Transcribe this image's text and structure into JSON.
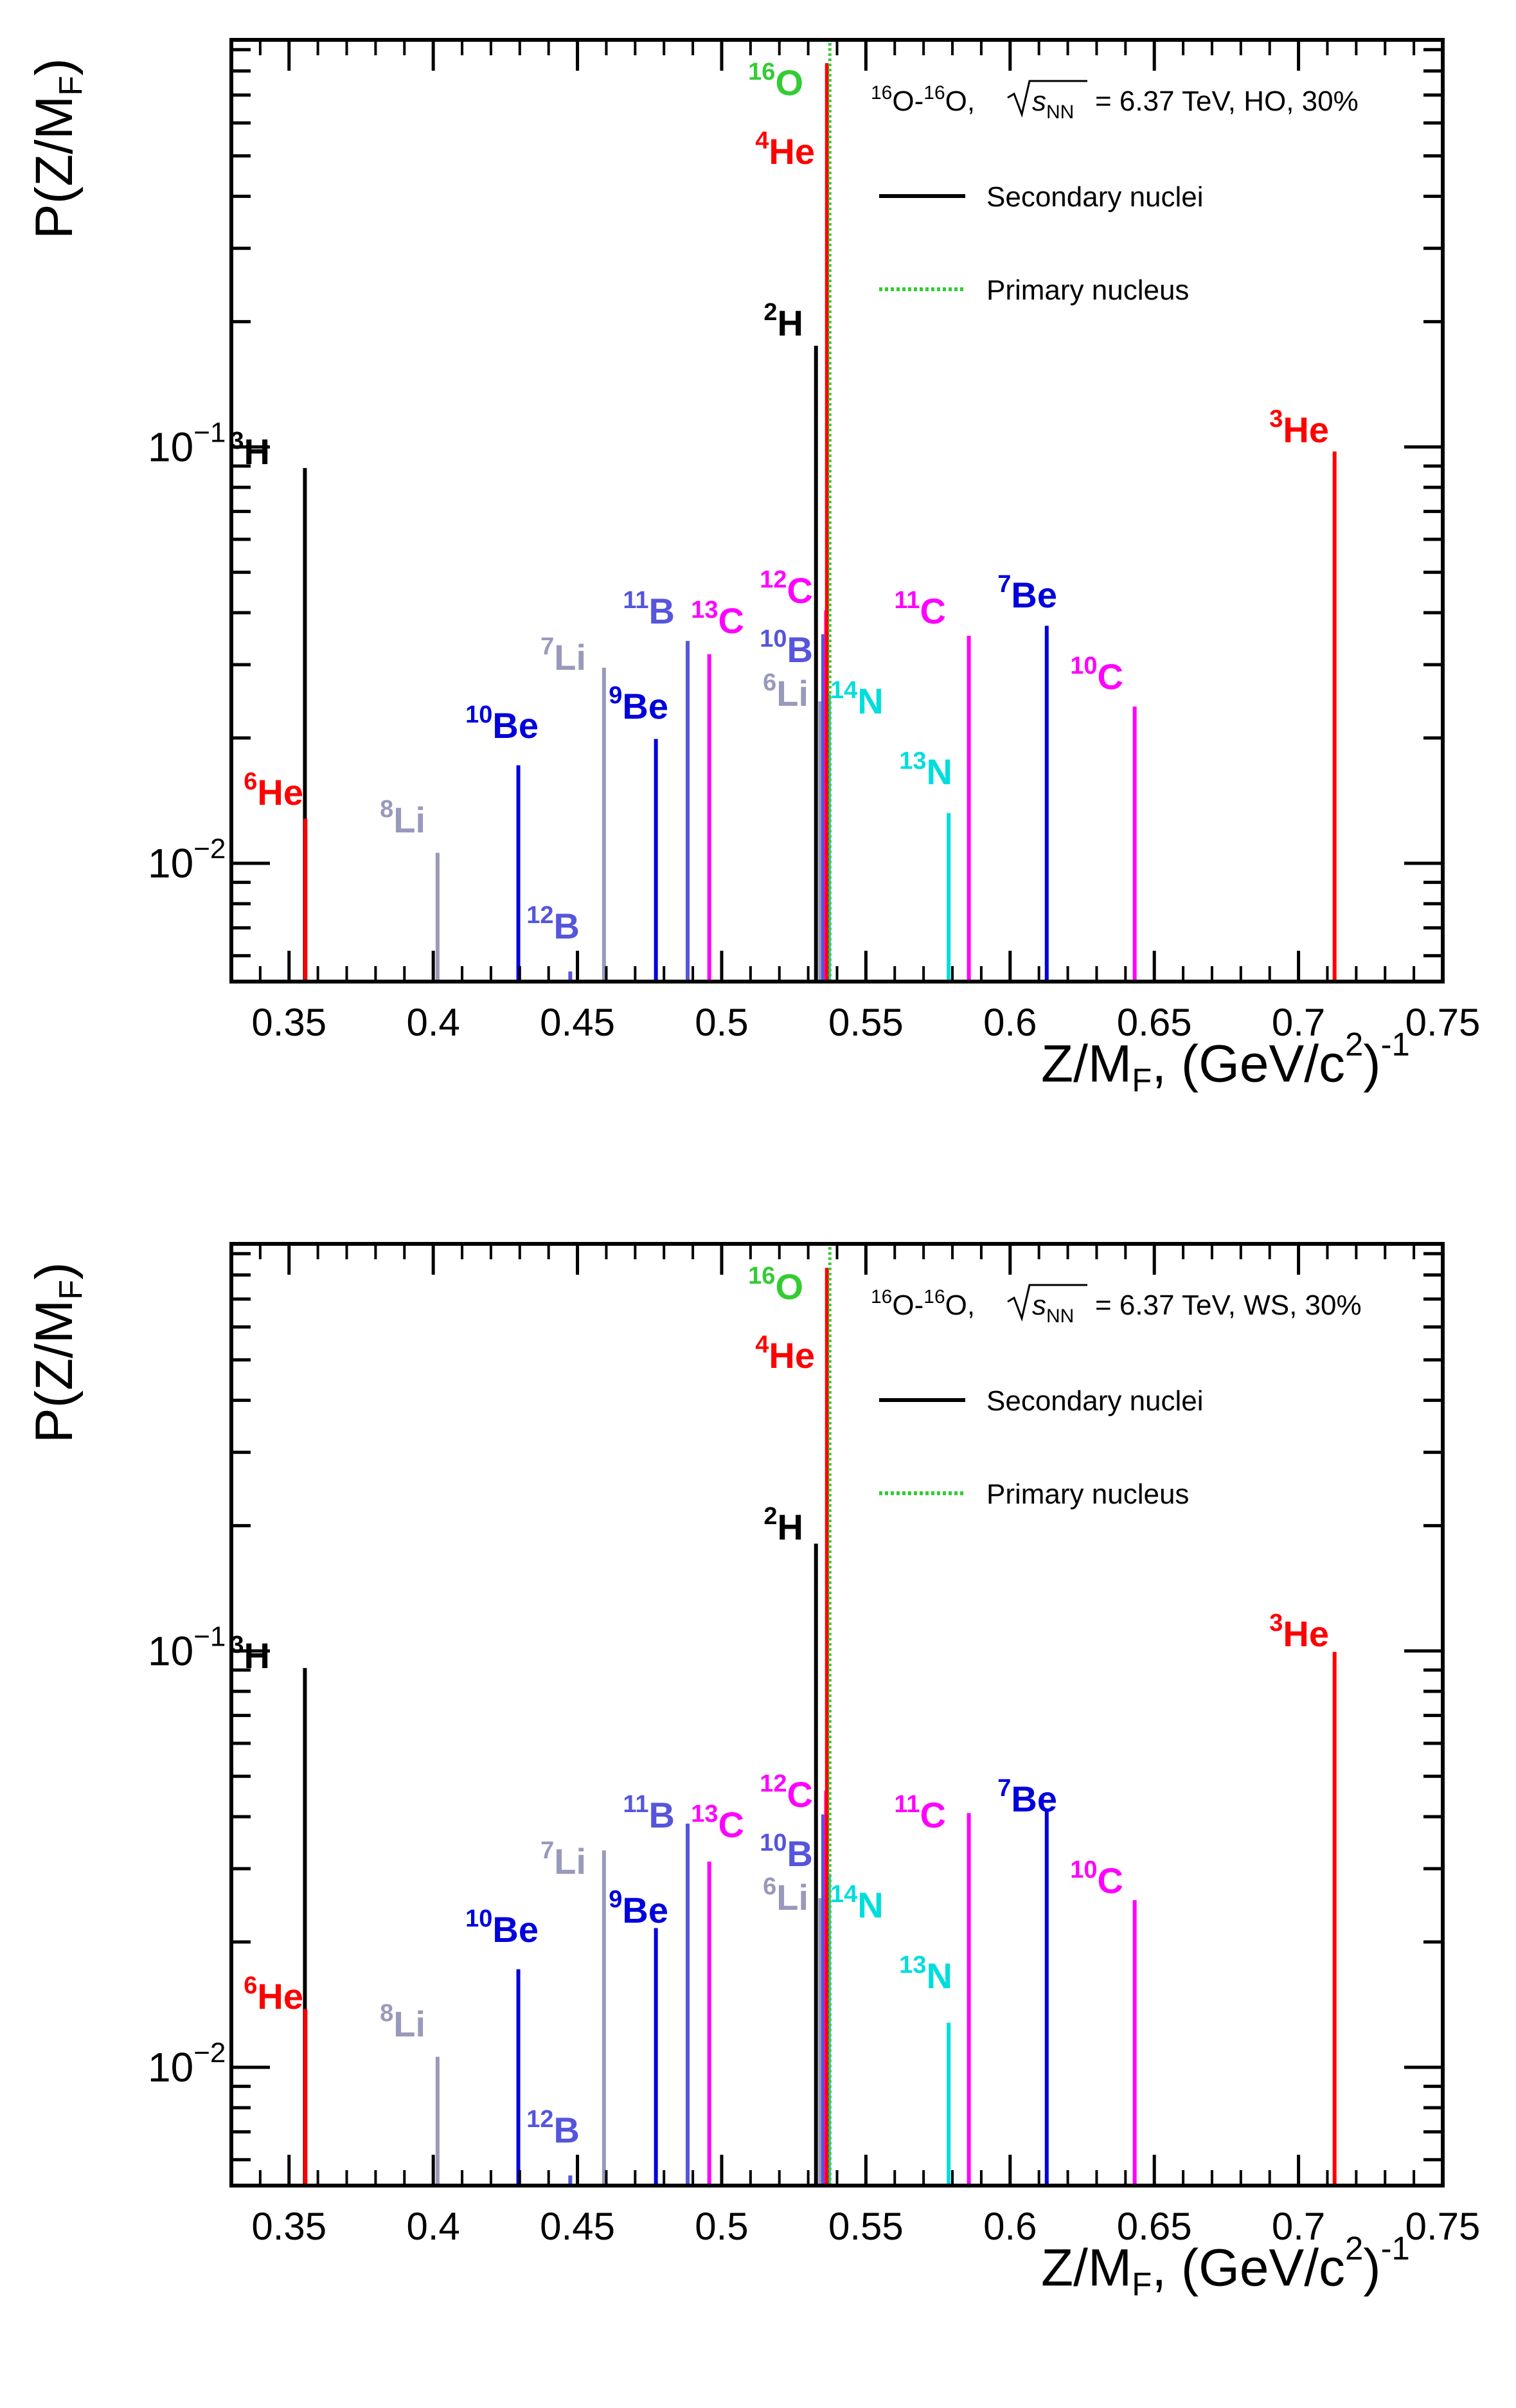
{
  "chart_data": [
    {
      "type": "bar",
      "subtype": "spike",
      "panel": "top",
      "legend_text": {
        "prefix_sup1": "16",
        "prefix_mid": "O-",
        "prefix_sup2": "16",
        "prefix_end": "O,",
        "sqrt_s": "s",
        "sqrt_sub": "NN",
        "suffix": "= 6.37 TeV, HO, 30%"
      },
      "legend": [
        {
          "label": "Secondary nuclei",
          "style": "solid",
          "color": "#000000"
        },
        {
          "label": "Primary nucleus",
          "style": "dotted",
          "color": "#33cc33"
        }
      ],
      "legend_placement": "top-right",
      "xlabel_main": "Z/M",
      "xlabel_sub": "F",
      "xlabel_unit": ", (GeV/c",
      "xlabel_sup": "2",
      "xlabel_close": ")",
      "xlabel_exp": "-1",
      "ylabel_main": "P(Z/M",
      "ylabel_sub": "F",
      "ylabel_close": ")",
      "xlim": [
        0.33,
        0.75
      ],
      "ylim": [
        0.0052,
        0.95
      ],
      "yscale": "log",
      "xticks": [
        "0.35",
        "0.4",
        "0.45",
        "0.5",
        "0.55",
        "0.6",
        "0.65",
        "0.7",
        "0.75"
      ],
      "yticks": [
        {
          "base": "10",
          "exp": "−2",
          "value": 0.01
        },
        {
          "base": "10",
          "exp": "−1",
          "value": 0.1
        }
      ],
      "series": [
        {
          "mass": "3",
          "element": "H",
          "x": 0.3555,
          "y": 0.089,
          "color": "#000000"
        },
        {
          "mass": "6",
          "element": "He",
          "x": 0.3557,
          "y": 0.0128,
          "color": "#ff0000"
        },
        {
          "mass": "8",
          "element": "Li",
          "x": 0.4015,
          "y": 0.0106,
          "color": "#9999bb"
        },
        {
          "mass": "10",
          "element": "Be",
          "x": 0.4295,
          "y": 0.0172,
          "color": "#0000dd"
        },
        {
          "mass": "12",
          "element": "B",
          "x": 0.4475,
          "y": 0.0055,
          "color": "#5555dd"
        },
        {
          "mass": "7",
          "element": "Li",
          "x": 0.4592,
          "y": 0.0295,
          "color": "#9999bb"
        },
        {
          "mass": "9",
          "element": "Be",
          "x": 0.4772,
          "y": 0.0199,
          "color": "#0000dd"
        },
        {
          "mass": "11",
          "element": "B",
          "x": 0.4882,
          "y": 0.0342,
          "color": "#5555dd"
        },
        {
          "mass": "13",
          "element": "C",
          "x": 0.4957,
          "y": 0.0318,
          "color": "#ff00ff"
        },
        {
          "mass": "2",
          "element": "H",
          "x": 0.5327,
          "y": 0.175,
          "color": "#000000"
        },
        {
          "mass": "6",
          "element": "Li",
          "x": 0.5342,
          "y": 0.0245,
          "color": "#9999bb"
        },
        {
          "mass": "10",
          "element": "B",
          "x": 0.5352,
          "y": 0.0355,
          "color": "#5555dd"
        },
        {
          "mass": "12",
          "element": "C",
          "x": 0.5362,
          "y": 0.0405,
          "color": "#ff00ff"
        },
        {
          "mass": "14",
          "element": "N",
          "x": 0.5372,
          "y": 0.0255,
          "color": "#00dddd"
        },
        {
          "mass": "4",
          "element": "He",
          "x": 0.5365,
          "y": 0.835,
          "color": "#ff0000"
        },
        {
          "mass": "16",
          "element": "O",
          "x": 0.5375,
          "y": 0.95,
          "color": "#33cc33",
          "dotted": true
        },
        {
          "mass": "13",
          "element": "N",
          "x": 0.5787,
          "y": 0.0132,
          "color": "#00dddd"
        },
        {
          "mass": "11",
          "element": "C",
          "x": 0.5857,
          "y": 0.0352,
          "color": "#ff00ff"
        },
        {
          "mass": "7",
          "element": "Be",
          "x": 0.6127,
          "y": 0.0372,
          "color": "#0000dd"
        },
        {
          "mass": "10",
          "element": "C",
          "x": 0.6432,
          "y": 0.0238,
          "color": "#ff00ff"
        },
        {
          "mass": "3",
          "element": "He",
          "x": 0.7125,
          "y": 0.0975,
          "color": "#ff0000"
        }
      ]
    },
    {
      "type": "bar",
      "subtype": "spike",
      "panel": "bottom",
      "legend_text": {
        "prefix_sup1": "16",
        "prefix_mid": "O-",
        "prefix_sup2": "16",
        "prefix_end": "O,",
        "sqrt_s": "s",
        "sqrt_sub": "NN",
        "suffix": "= 6.37 TeV, WS, 30%"
      },
      "legend": [
        {
          "label": "Secondary nuclei",
          "style": "solid",
          "color": "#000000"
        },
        {
          "label": "Primary nucleus",
          "style": "dotted",
          "color": "#33cc33"
        }
      ],
      "legend_placement": "top-right",
      "xlabel_main": "Z/M",
      "xlabel_sub": "F",
      "xlabel_unit": ", (GeV/c",
      "xlabel_sup": "2",
      "xlabel_close": ")",
      "xlabel_exp": "-1",
      "ylabel_main": "P(Z/M",
      "ylabel_sub": "F",
      "ylabel_close": ")",
      "xlim": [
        0.33,
        0.75
      ],
      "ylim": [
        0.0052,
        0.95
      ],
      "yscale": "log",
      "xticks": [
        "0.35",
        "0.4",
        "0.45",
        "0.5",
        "0.55",
        "0.6",
        "0.65",
        "0.7",
        "0.75"
      ],
      "yticks": [
        {
          "base": "10",
          "exp": "−2",
          "value": 0.01
        },
        {
          "base": "10",
          "exp": "−1",
          "value": 0.1
        }
      ],
      "series": [
        {
          "mass": "3",
          "element": "H",
          "x": 0.3555,
          "y": 0.091,
          "color": "#000000"
        },
        {
          "mass": "6",
          "element": "He",
          "x": 0.3557,
          "y": 0.0138,
          "color": "#ff0000"
        },
        {
          "mass": "8",
          "element": "Li",
          "x": 0.4015,
          "y": 0.0106,
          "color": "#9999bb"
        },
        {
          "mass": "10",
          "element": "Be",
          "x": 0.4295,
          "y": 0.0172,
          "color": "#0000dd"
        },
        {
          "mass": "12",
          "element": "B",
          "x": 0.4475,
          "y": 0.0055,
          "color": "#5555dd"
        },
        {
          "mass": "7",
          "element": "Li",
          "x": 0.4592,
          "y": 0.0332,
          "color": "#9999bb"
        },
        {
          "mass": "9",
          "element": "Be",
          "x": 0.4772,
          "y": 0.0216,
          "color": "#0000dd"
        },
        {
          "mass": "11",
          "element": "B",
          "x": 0.4882,
          "y": 0.0385,
          "color": "#5555dd"
        },
        {
          "mass": "13",
          "element": "C",
          "x": 0.4957,
          "y": 0.0312,
          "color": "#ff00ff"
        },
        {
          "mass": "2",
          "element": "H",
          "x": 0.5327,
          "y": 0.181,
          "color": "#000000"
        },
        {
          "mass": "6",
          "element": "Li",
          "x": 0.5342,
          "y": 0.0255,
          "color": "#9999bb"
        },
        {
          "mass": "10",
          "element": "B",
          "x": 0.5352,
          "y": 0.0405,
          "color": "#5555dd"
        },
        {
          "mass": "12",
          "element": "C",
          "x": 0.5362,
          "y": 0.0462,
          "color": "#ff00ff"
        },
        {
          "mass": "14",
          "element": "N",
          "x": 0.5372,
          "y": 0.0292,
          "color": "#00dddd"
        },
        {
          "mass": "4",
          "element": "He",
          "x": 0.5365,
          "y": 0.832,
          "color": "#ff0000"
        },
        {
          "mass": "16",
          "element": "O",
          "x": 0.5375,
          "y": 0.95,
          "color": "#33cc33",
          "dotted": true
        },
        {
          "mass": "13",
          "element": "N",
          "x": 0.5787,
          "y": 0.0128,
          "color": "#00dddd"
        },
        {
          "mass": "11",
          "element": "C",
          "x": 0.5857,
          "y": 0.0408,
          "color": "#ff00ff"
        },
        {
          "mass": "7",
          "element": "Be",
          "x": 0.6127,
          "y": 0.0418,
          "color": "#0000dd"
        },
        {
          "mass": "10",
          "element": "C",
          "x": 0.6432,
          "y": 0.0252,
          "color": "#ff00ff"
        },
        {
          "mass": "3",
          "element": "He",
          "x": 0.7125,
          "y": 0.0995,
          "color": "#ff0000"
        }
      ]
    }
  ]
}
